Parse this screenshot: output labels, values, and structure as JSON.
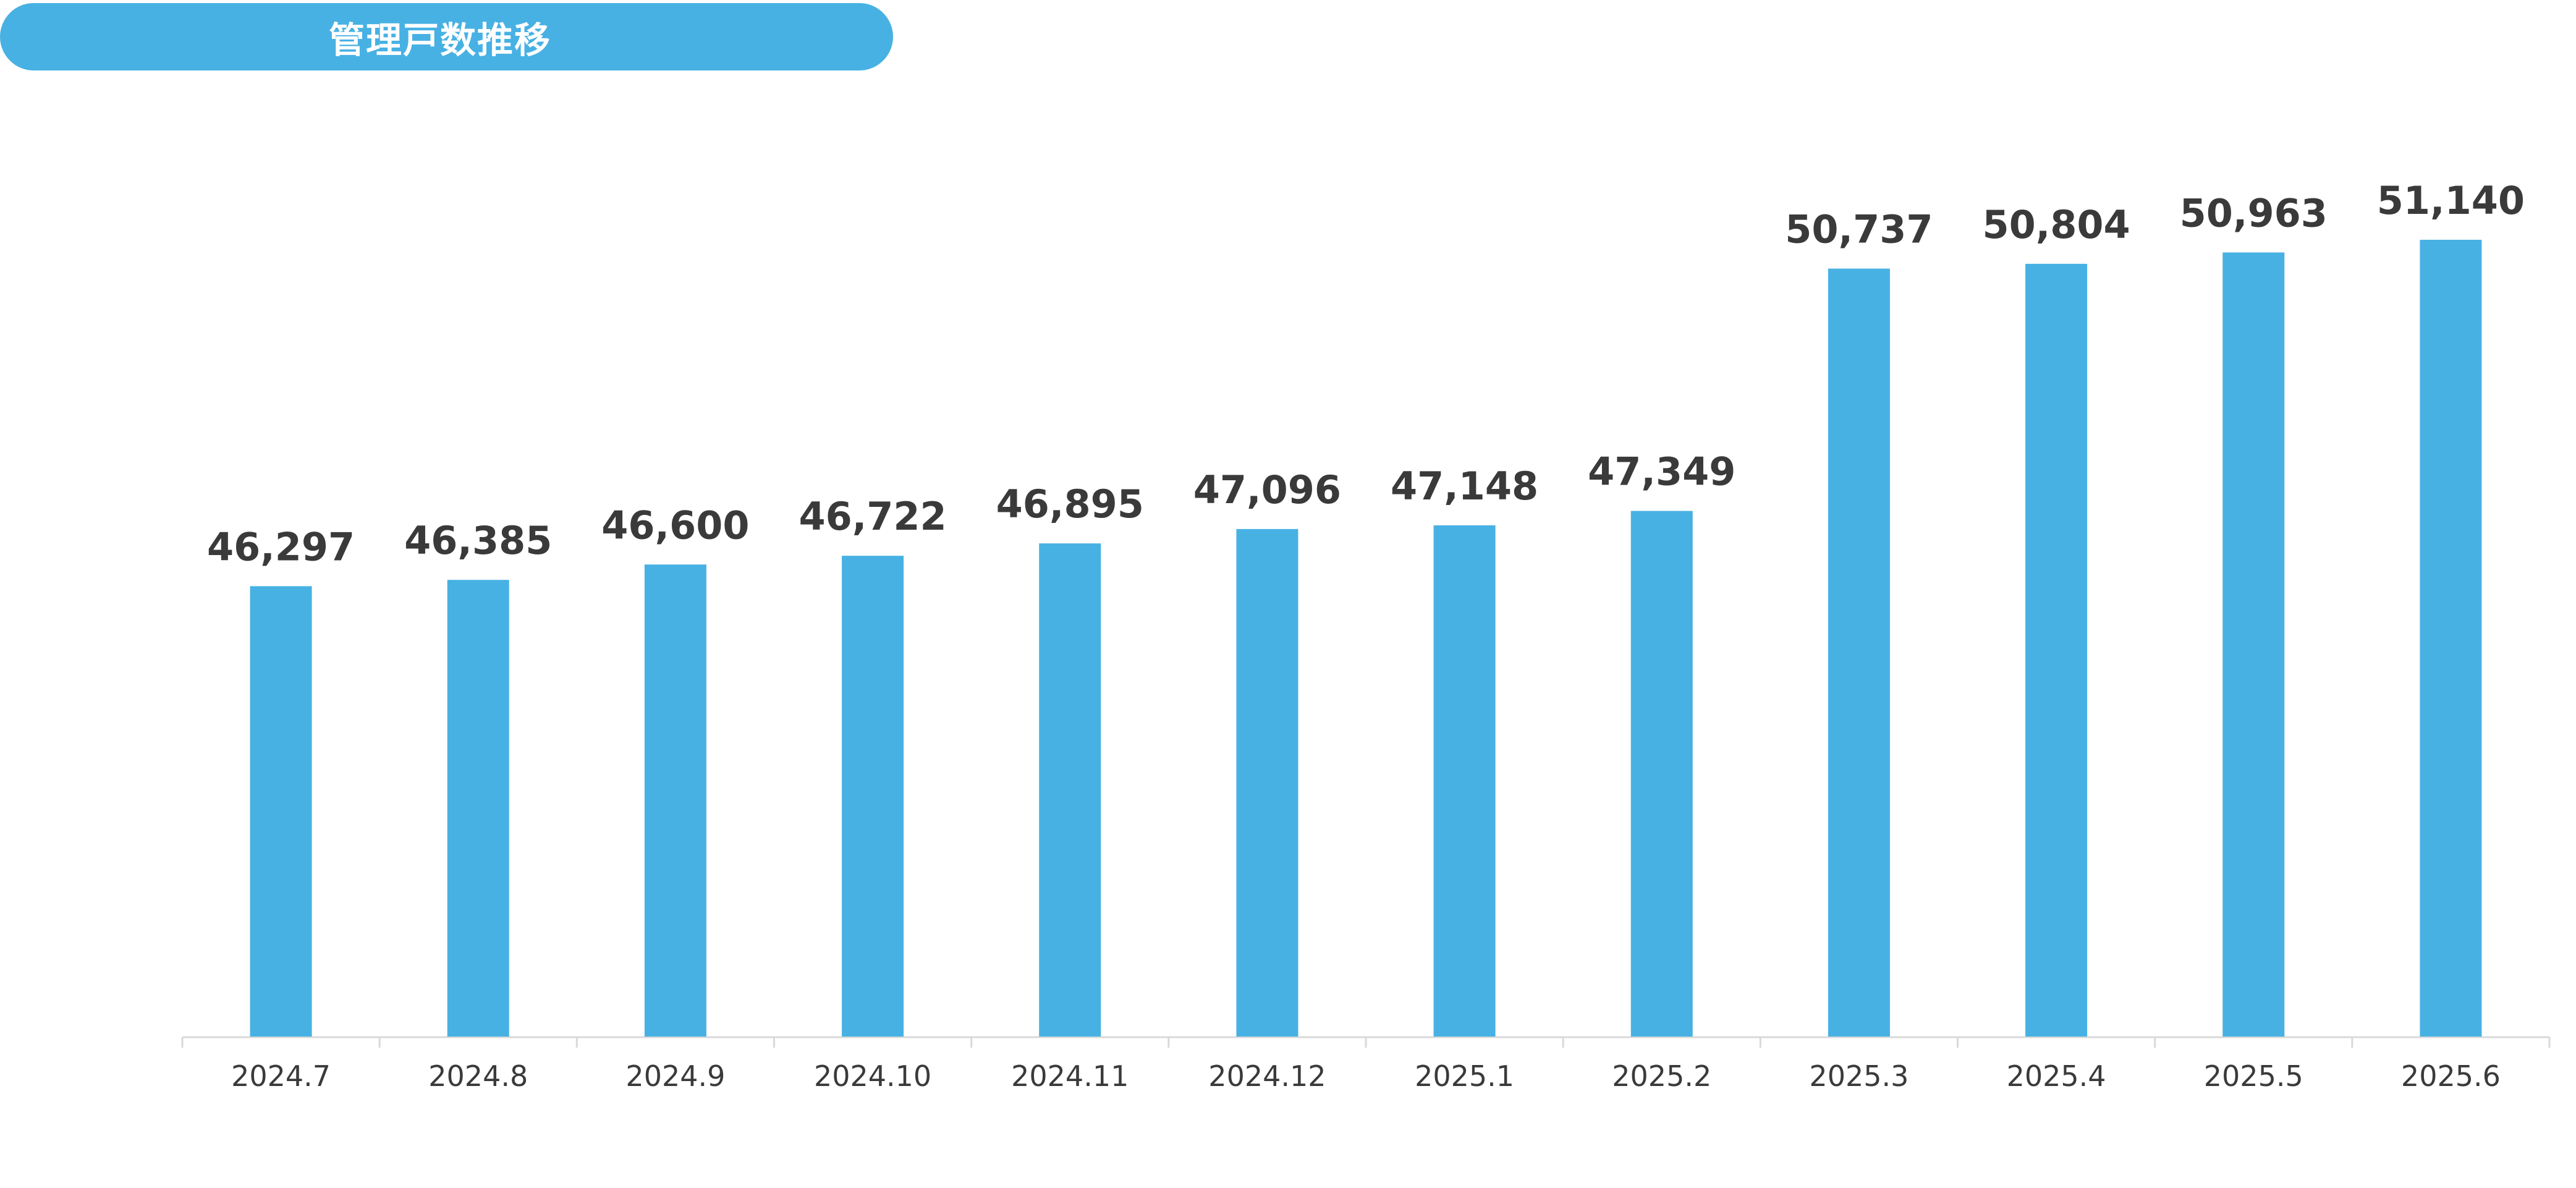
{
  "header": {
    "title": "管理戸数推移"
  },
  "colors": {
    "bar": "#47b1e3",
    "title_background": "#47b1e3",
    "axis": "#d9d9d9",
    "text": "#3a3a3a"
  },
  "chart_data": {
    "type": "bar",
    "title": "管理戸数推移",
    "categories": [
      "2024.7",
      "2024.8",
      "2024.9",
      "2024.10",
      "2024.11",
      "2024.12",
      "2025.1",
      "2025.2",
      "2025.3",
      "2025.4",
      "2025.5",
      "2025.6"
    ],
    "values": [
      46297,
      46385,
      46600,
      46722,
      46895,
      47096,
      47148,
      47349,
      50737,
      50804,
      50963,
      51140
    ],
    "value_labels": [
      "46,297",
      "46,385",
      "46,600",
      "46,722",
      "46,895",
      "47,096",
      "47,148",
      "47,349",
      "50,737",
      "50,804",
      "50,963",
      "51,140"
    ],
    "ylim": [
      40000,
      51900
    ],
    "grid": false,
    "legend": "none",
    "data_labels": true
  }
}
